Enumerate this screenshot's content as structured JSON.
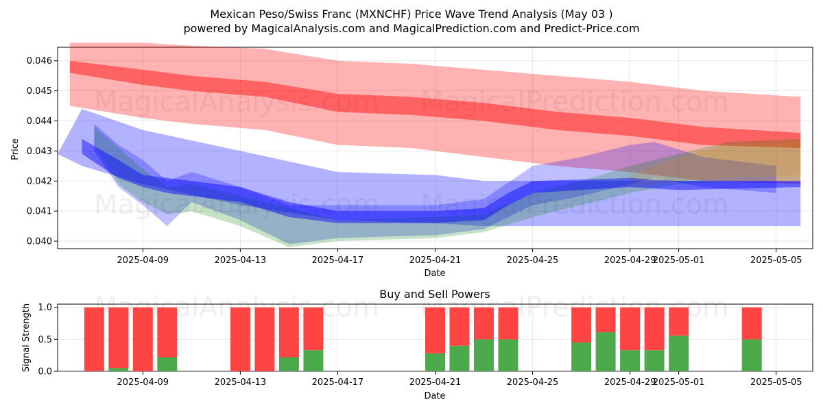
{
  "chart_data": [
    {
      "type": "line",
      "title": "Mexican Peso/Swiss Franc (MXNCHF) Price Wave Trend Analysis (May 03 )",
      "subtitle": "powered by MagicalAnalysis.com and MagicalPrediction.com and Predict-Price.com",
      "xlabel": "Date",
      "ylabel": "Price",
      "xlim": [
        "2025-04-05T12:00",
        "2025-05-06T12:00"
      ],
      "ylim": [
        0.03975,
        0.04645
      ],
      "x_ticks": [
        "2025-04-09",
        "2025-04-13",
        "2025-04-17",
        "2025-04-21",
        "2025-04-25",
        "2025-04-29",
        "2025-05-01",
        "2025-05-05"
      ],
      "y_ticks": [
        0.04,
        0.041,
        0.042,
        0.043,
        0.044,
        0.045,
        0.046
      ],
      "y_tick_labels": [
        "0.040",
        "0.041",
        "0.042",
        "0.043",
        "0.044",
        "0.045",
        "0.046"
      ],
      "watermarks": [
        "MagicalAnalysis.com",
        "MagicalPrediction.com"
      ],
      "series": [
        {
          "name": "red-trend-band-wide",
          "color": "#ff0000",
          "opacity": 0.3,
          "x": [
            "2025-04-06",
            "2025-04-09",
            "2025-04-11",
            "2025-04-14",
            "2025-04-17",
            "2025-04-20",
            "2025-04-23",
            "2025-04-26",
            "2025-04-29",
            "2025-05-02",
            "2025-05-06"
          ],
          "upper": [
            0.0466,
            0.0466,
            0.0465,
            0.0464,
            0.046,
            0.0459,
            0.0457,
            0.0455,
            0.0453,
            0.045,
            0.0448
          ],
          "lower": [
            0.0445,
            0.0441,
            0.0439,
            0.0437,
            0.0432,
            0.0431,
            0.0428,
            0.0425,
            0.0423,
            0.042,
            0.0419
          ]
        },
        {
          "name": "red-trend-line",
          "color": "#ff0000",
          "opacity": 0.45,
          "x": [
            "2025-04-06",
            "2025-04-09",
            "2025-04-11",
            "2025-04-14",
            "2025-04-17",
            "2025-04-20",
            "2025-04-23",
            "2025-04-26",
            "2025-04-29",
            "2025-05-02",
            "2025-05-06"
          ],
          "upper": [
            0.046,
            0.0457,
            0.0455,
            0.0453,
            0.0449,
            0.0448,
            0.0446,
            0.0443,
            0.0441,
            0.0438,
            0.0436
          ],
          "lower": [
            0.0456,
            0.0452,
            0.045,
            0.0448,
            0.0443,
            0.0442,
            0.044,
            0.0437,
            0.0435,
            0.0432,
            0.0431
          ]
        },
        {
          "name": "blue-trend-band-wide",
          "color": "#0000ff",
          "opacity": 0.3,
          "x": [
            "2025-04-05T12:00",
            "2025-04-06T12:00",
            "2025-04-09",
            "2025-04-13",
            "2025-04-17",
            "2025-04-21",
            "2025-04-23",
            "2025-04-25",
            "2025-04-29",
            "2025-05-01",
            "2025-05-06"
          ],
          "upper": [
            0.0429,
            0.0444,
            0.0437,
            0.043,
            0.0423,
            0.0422,
            0.042,
            0.042,
            0.042,
            0.042,
            0.042
          ],
          "lower": [
            0.0429,
            0.0425,
            0.0419,
            0.0412,
            0.0407,
            0.0406,
            0.0405,
            0.0405,
            0.0405,
            0.0405,
            0.0405
          ]
        },
        {
          "name": "blue-wave-bundle",
          "color": "#0000ff",
          "opacity": 0.25,
          "x": [
            "2025-04-07",
            "2025-04-08",
            "2025-04-09",
            "2025-04-10",
            "2025-04-11",
            "2025-04-13",
            "2025-04-15",
            "2025-04-17",
            "2025-04-21",
            "2025-04-23",
            "2025-04-25",
            "2025-04-27",
            "2025-04-29",
            "2025-04-30",
            "2025-05-02",
            "2025-05-05"
          ],
          "upper": [
            0.0439,
            0.0432,
            0.0427,
            0.042,
            0.0423,
            0.0418,
            0.0412,
            0.0412,
            0.0412,
            0.0414,
            0.0425,
            0.0428,
            0.0432,
            0.0433,
            0.0428,
            0.0425
          ],
          "lower": [
            0.043,
            0.0418,
            0.0412,
            0.0405,
            0.0413,
            0.0407,
            0.0399,
            0.0401,
            0.0402,
            0.0404,
            0.0412,
            0.0415,
            0.0419,
            0.0421,
            0.0418,
            0.0416
          ]
        },
        {
          "name": "green-wave-bundle",
          "color": "#008000",
          "opacity": 0.22,
          "x": [
            "2025-04-07",
            "2025-04-08",
            "2025-04-09",
            "2025-04-10",
            "2025-04-11",
            "2025-04-13",
            "2025-04-15",
            "2025-04-17",
            "2025-04-21",
            "2025-04-23",
            "2025-04-25",
            "2025-04-27",
            "2025-04-29",
            "2025-05-01",
            "2025-05-03",
            "2025-05-06"
          ],
          "upper": [
            0.0438,
            0.0431,
            0.0424,
            0.0418,
            0.0419,
            0.0415,
            0.0411,
            0.0407,
            0.0408,
            0.0409,
            0.0416,
            0.042,
            0.0425,
            0.0429,
            0.0433,
            0.0434
          ],
          "lower": [
            0.0432,
            0.0419,
            0.0413,
            0.0409,
            0.041,
            0.0405,
            0.0398,
            0.04,
            0.0401,
            0.0403,
            0.0408,
            0.0412,
            0.0416,
            0.0419,
            0.042,
            0.042
          ]
        },
        {
          "name": "orange-wave-bundle",
          "color": "#cc8800",
          "opacity": 0.2,
          "x": [
            "2025-04-29",
            "2025-05-01",
            "2025-05-03",
            "2025-05-06"
          ],
          "upper": [
            0.0422,
            0.0428,
            0.0432,
            0.0433
          ],
          "lower": [
            0.0418,
            0.042,
            0.0421,
            0.0422
          ]
        },
        {
          "name": "blue-median-line",
          "color": "#0000ff",
          "opacity": 0.45,
          "x": [
            "2025-04-06T12:00",
            "2025-04-08",
            "2025-04-09",
            "2025-04-10",
            "2025-04-11",
            "2025-04-13",
            "2025-04-15",
            "2025-04-17",
            "2025-04-21",
            "2025-04-23",
            "2025-04-24",
            "2025-04-25",
            "2025-04-29",
            "2025-05-01",
            "2025-05-06"
          ],
          "upper": [
            0.0434,
            0.0427,
            0.0422,
            0.0421,
            0.042,
            0.0418,
            0.0413,
            0.041,
            0.041,
            0.0411,
            0.0416,
            0.042,
            0.0421,
            0.042,
            0.042
          ],
          "lower": [
            0.0429,
            0.0421,
            0.0418,
            0.0416,
            0.0415,
            0.0413,
            0.0408,
            0.0406,
            0.0406,
            0.0407,
            0.0412,
            0.0416,
            0.0418,
            0.0417,
            0.0418
          ]
        }
      ]
    },
    {
      "type": "bar",
      "title": "Buy and Sell Powers",
      "xlabel": "Date",
      "ylabel": "Signal Strength",
      "xlim": [
        "2025-04-05T12:00",
        "2025-05-06T12:00"
      ],
      "ylim": [
        0,
        1.05
      ],
      "x_ticks": [
        "2025-04-09",
        "2025-04-13",
        "2025-04-17",
        "2025-04-21",
        "2025-04-25",
        "2025-04-29",
        "2025-05-01",
        "2025-05-05"
      ],
      "y_ticks": [
        0.0,
        0.5,
        1.0
      ],
      "y_tick_labels": [
        "0.0",
        "0.5",
        "1.0"
      ],
      "watermarks": [
        "MagicalAnalysis.com",
        "MagicalPrediction.com"
      ],
      "colors": {
        "buy": "#4caa4c",
        "sell": "#ff4444"
      },
      "dates": [
        "2025-04-07",
        "2025-04-08",
        "2025-04-09",
        "2025-04-10",
        "2025-04-13",
        "2025-04-14",
        "2025-04-15",
        "2025-04-16",
        "2025-04-21",
        "2025-04-22",
        "2025-04-23",
        "2025-04-24",
        "2025-04-27",
        "2025-04-28",
        "2025-04-29",
        "2025-04-30",
        "2025-05-01",
        "2025-05-04"
      ],
      "series": [
        {
          "name": "Buy",
          "values": [
            0.0,
            0.05,
            0.0,
            0.22,
            0.0,
            0.0,
            0.22,
            0.33,
            0.28,
            0.4,
            0.5,
            0.5,
            0.45,
            0.61,
            0.33,
            0.33,
            0.56,
            0.5
          ]
        },
        {
          "name": "Sell",
          "values": [
            1.0,
            0.95,
            1.0,
            0.78,
            1.0,
            1.0,
            0.78,
            0.67,
            0.72,
            0.6,
            0.5,
            0.5,
            0.55,
            0.39,
            0.67,
            0.67,
            0.44,
            0.5
          ]
        }
      ]
    }
  ]
}
